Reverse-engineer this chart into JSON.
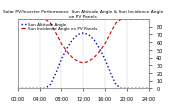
{
  "title": "Solar PV/Inverter Performance  Sun Altitude Angle & Sun Incidence Angle on PV Panels",
  "bg_color": "#ffffff",
  "plot_bg_color": "#ffffff",
  "grid_color": "#cccccc",
  "blue_color": "#0000cc",
  "red_color": "#cc0000",
  "x_hours": [
    0,
    1,
    2,
    3,
    4,
    5,
    6,
    7,
    8,
    9,
    10,
    11,
    12,
    13,
    14,
    15,
    16,
    17,
    18,
    19,
    20,
    21,
    22,
    23,
    24
  ],
  "altitude_values": [
    0,
    0,
    0,
    0,
    0,
    0,
    5,
    20,
    38,
    52,
    63,
    70,
    72,
    70,
    63,
    52,
    38,
    20,
    5,
    0,
    0,
    0,
    0,
    0,
    0
  ],
  "incidence_values": [
    90,
    90,
    90,
    90,
    90,
    90,
    85,
    72,
    58,
    48,
    40,
    35,
    33,
    35,
    40,
    48,
    58,
    72,
    85,
    90,
    90,
    90,
    90,
    90,
    90
  ],
  "ylim": [
    0,
    90
  ],
  "xlim": [
    0,
    24
  ],
  "yticks_right": [
    0,
    10,
    20,
    30,
    40,
    50,
    60,
    70,
    80
  ],
  "xtick_labels": [
    "00:00",
    "04:00",
    "08:00",
    "12:00",
    "16:00",
    "20:00",
    "24:00"
  ],
  "xtick_positions": [
    0,
    4,
    8,
    12,
    16,
    20,
    24
  ],
  "tick_fontsize": 3.5,
  "title_fontsize": 3.2,
  "legend_entries": [
    "Sun Altitude Angle",
    "Sun Incidence Angle on PV Panels"
  ]
}
